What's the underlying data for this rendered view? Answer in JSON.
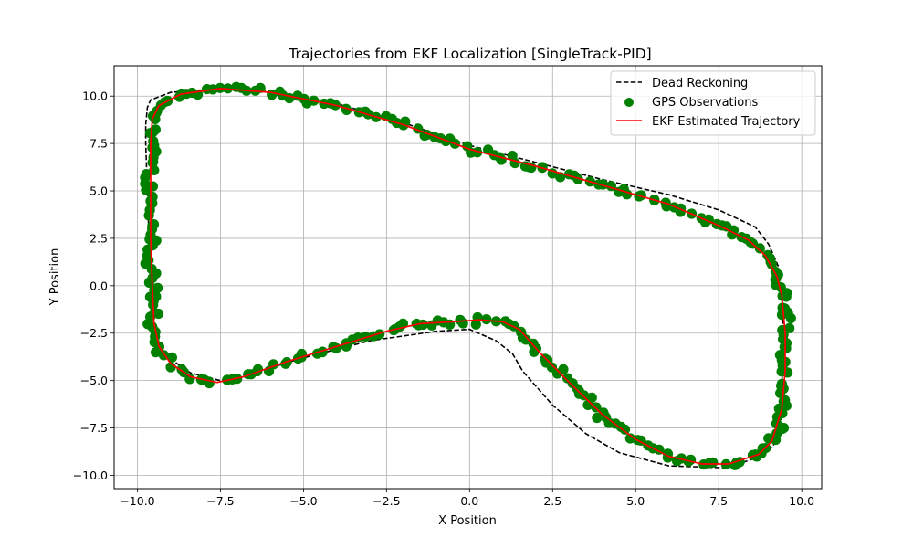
{
  "chart_data": {
    "type": "line",
    "title": "Trajectories from EKF Localization [SingleTrack-PID]",
    "xlabel": "X Position",
    "ylabel": "Y Position",
    "xlim": [
      -10.7,
      10.6
    ],
    "ylim": [
      -10.7,
      11.6
    ],
    "xticks": [
      -10.0,
      -7.5,
      -5.0,
      -2.5,
      0.0,
      2.5,
      5.0,
      7.5,
      10.0
    ],
    "yticks": [
      -10.0,
      -7.5,
      -5.0,
      -2.5,
      0.0,
      2.5,
      5.0,
      7.5,
      10.0
    ],
    "xtick_labels": [
      "−10.0",
      "−7.5",
      "−5.0",
      "−2.5",
      "0.0",
      "2.5",
      "5.0",
      "7.5",
      "10.0"
    ],
    "ytick_labels": [
      "−10.0",
      "−7.5",
      "−5.0",
      "−2.5",
      "0.0",
      "2.5",
      "5.0",
      "7.5",
      "10.0"
    ],
    "grid": true,
    "legend_position": "top-right",
    "series": [
      {
        "name": "Dead Reckoning",
        "kind": "line",
        "style": "dashed",
        "color": "#000000",
        "x": [
          -9.75,
          -9.7,
          -9.6,
          -9.0,
          -7.5,
          -6.0,
          -4.0,
          -2.0,
          0.0,
          2.0,
          4.0,
          6.0,
          7.5,
          8.6,
          9.0,
          9.3,
          9.4,
          9.45,
          9.42,
          9.35,
          9.2,
          9.2,
          8.8,
          7.7,
          6.0,
          4.5,
          3.5,
          2.5,
          1.6,
          1.3,
          0.8,
          0.0,
          -1.0,
          -3.0,
          -5.0,
          -6.5,
          -7.5,
          -8.4,
          -9.3,
          -9.5,
          -9.6,
          -9.65,
          -9.7,
          -9.75
        ],
        "y": [
          8.5,
          9.4,
          9.8,
          10.2,
          10.4,
          10.3,
          9.6,
          8.6,
          7.4,
          6.5,
          5.6,
          4.8,
          4.0,
          3.1,
          2.2,
          1.0,
          -0.5,
          -2.5,
          -4.5,
          -6.5,
          -8.0,
          -8.3,
          -9.0,
          -9.6,
          -9.5,
          -8.8,
          -7.8,
          -6.3,
          -4.5,
          -3.6,
          -2.9,
          -2.3,
          -2.4,
          -2.9,
          -3.8,
          -4.6,
          -5.0,
          -4.6,
          -3.5,
          -2.0,
          0.0,
          2.5,
          5.0,
          7.5
        ],
        "closed": true
      },
      {
        "name": "GPS Observations",
        "kind": "scatter",
        "color": "#008000",
        "point_spacing": 0.22,
        "jitter": 0.13,
        "x": [
          -9.55,
          -9.35,
          -8.7,
          -7.5,
          -6.0,
          -4.0,
          -2.0,
          0.0,
          2.0,
          4.0,
          6.0,
          7.6,
          8.4,
          8.9,
          9.25,
          9.4,
          9.5,
          9.5,
          9.4,
          9.1,
          8.7,
          7.8,
          7.0,
          6.0,
          5.0,
          4.0,
          3.0,
          2.1,
          1.5,
          1.0,
          0.3,
          -0.5,
          -1.5,
          -2.5,
          -4.0,
          -5.5,
          -6.8,
          -7.6,
          -8.4,
          -9.0,
          -9.35,
          -9.5,
          -9.55,
          -9.6,
          -9.6,
          -9.6
        ],
        "y": [
          8.8,
          9.5,
          10.1,
          10.4,
          10.2,
          9.5,
          8.5,
          7.2,
          6.3,
          5.3,
          4.3,
          3.1,
          2.4,
          1.6,
          0.5,
          -0.5,
          -2.5,
          -4.5,
          -6.5,
          -8.2,
          -8.9,
          -9.4,
          -9.4,
          -9.0,
          -8.1,
          -6.8,
          -5.1,
          -3.5,
          -2.3,
          -1.9,
          -1.8,
          -1.9,
          -2.0,
          -2.4,
          -3.2,
          -4.0,
          -4.8,
          -5.1,
          -4.8,
          -4.1,
          -3.2,
          -2.0,
          0.0,
          2.5,
          5.0,
          7.5
        ],
        "closed": true
      },
      {
        "name": "EKF Estimated Trajectory",
        "kind": "line",
        "style": "solid",
        "color": "#ff0000",
        "x": [
          -9.55,
          -9.35,
          -8.7,
          -7.5,
          -6.0,
          -4.0,
          -2.0,
          0.0,
          2.0,
          4.0,
          6.0,
          7.6,
          8.4,
          8.9,
          9.25,
          9.4,
          9.5,
          9.5,
          9.4,
          9.1,
          8.7,
          7.8,
          7.0,
          6.0,
          5.0,
          4.0,
          3.0,
          2.1,
          1.5,
          1.0,
          0.3,
          -0.5,
          -1.5,
          -2.5,
          -4.0,
          -5.5,
          -6.8,
          -7.6,
          -8.4,
          -9.0,
          -9.35,
          -9.5,
          -9.55,
          -9.6,
          -9.6,
          -9.6
        ],
        "y": [
          8.8,
          9.5,
          10.1,
          10.4,
          10.2,
          9.5,
          8.5,
          7.2,
          6.3,
          5.3,
          4.3,
          3.1,
          2.4,
          1.6,
          0.5,
          -0.5,
          -2.5,
          -4.5,
          -6.5,
          -8.2,
          -8.9,
          -9.4,
          -9.4,
          -9.0,
          -8.1,
          -6.8,
          -5.1,
          -3.5,
          -2.3,
          -1.9,
          -1.8,
          -1.9,
          -2.0,
          -2.4,
          -3.2,
          -4.0,
          -4.8,
          -5.1,
          -4.8,
          -4.1,
          -3.2,
          -2.0,
          0.0,
          2.5,
          5.0,
          7.5
        ],
        "closed": true
      }
    ]
  }
}
